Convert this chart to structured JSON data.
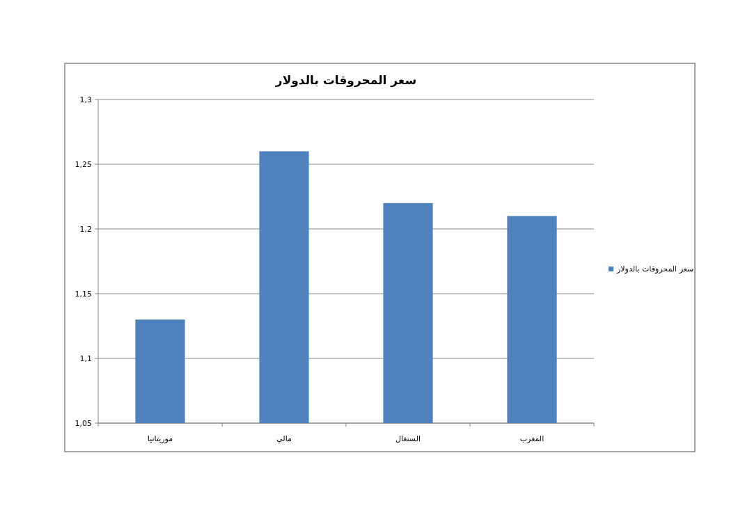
{
  "chart_data": {
    "type": "bar",
    "title": "سعر المحروقات بالدولار",
    "categories": [
      "موريتانيا",
      "مالي",
      "السنغال",
      "المغرب"
    ],
    "series": [
      {
        "name": "سعر المحروقات بالدولار",
        "color": "#4f81bd",
        "values": [
          1.13,
          1.26,
          1.22,
          1.21
        ]
      }
    ],
    "ylim": [
      1.05,
      1.3
    ],
    "yticks": [
      {
        "value": 1.05,
        "label": "1,05"
      },
      {
        "value": 1.1,
        "label": "1,1"
      },
      {
        "value": 1.15,
        "label": "1,15"
      },
      {
        "value": 1.2,
        "label": "1,2"
      },
      {
        "value": 1.25,
        "label": "1,25"
      },
      {
        "value": 1.3,
        "label": "1,3"
      }
    ],
    "grid": "y",
    "legend": "right"
  }
}
